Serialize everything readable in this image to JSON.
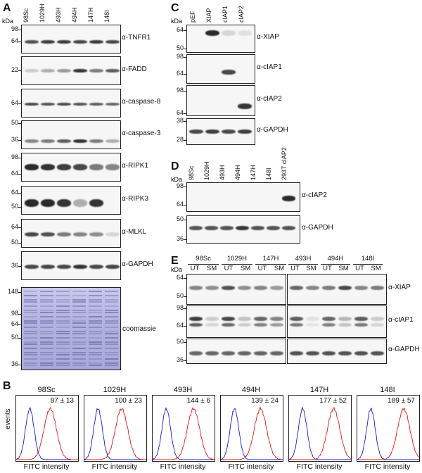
{
  "panels": {
    "a": {
      "letter": "A",
      "kda_unit": "kDa",
      "lanes": [
        "98Sc",
        "1029H",
        "493H",
        "494H",
        "147H",
        "148I"
      ],
      "blots": [
        {
          "label": "α-TNFR1",
          "markers": [
            "98",
            "64"
          ]
        },
        {
          "label": "α-FADD",
          "markers": [
            "22"
          ]
        },
        {
          "label": "α-caspase-8",
          "markers": [
            "64"
          ]
        },
        {
          "label": "α-caspase-3",
          "markers": [
            "50",
            "36"
          ]
        },
        {
          "label": "α-RIPK1",
          "markers": [
            "98",
            "64"
          ]
        },
        {
          "label": "α-RIPK3",
          "markers": [
            "64",
            "50"
          ]
        },
        {
          "label": "α-MLKL",
          "markers": [
            "64",
            "50"
          ]
        },
        {
          "label": "α-GAPDH",
          "markers": [
            "36"
          ]
        }
      ],
      "coomassie": {
        "label": "coomassie",
        "markers": [
          "148",
          "98",
          "64",
          "50",
          "36"
        ]
      }
    },
    "b": {
      "letter": "B",
      "ylabel": "events",
      "xlabel": "FITC intensity",
      "histograms": [
        {
          "sample": "98Sc",
          "value": "87 ± 13"
        },
        {
          "sample": "1029H",
          "value": "100 ± 23"
        },
        {
          "sample": "493H",
          "value": "144 ± 6"
        },
        {
          "sample": "494H",
          "value": "139 ± 24"
        },
        {
          "sample": "147H",
          "value": "177 ± 52"
        },
        {
          "sample": "148I",
          "value": "189 ± 57"
        }
      ],
      "colors": {
        "control": "#1a1ad8",
        "stained": "#e01818"
      }
    },
    "c": {
      "letter": "C",
      "lanes": [
        "pEF",
        "XIAP",
        "cIAP1",
        "cIAP2"
      ],
      "blots": [
        {
          "label": "α-XIAP",
          "markers": [
            "64",
            "50"
          ]
        },
        {
          "label": "α-cIAP1",
          "markers": [
            "98",
            "64"
          ]
        },
        {
          "label": "α-cIAP2",
          "markers": [
            "98",
            "64"
          ]
        },
        {
          "label": "α-GAPDH",
          "markers": [
            "38",
            "28"
          ]
        }
      ]
    },
    "d": {
      "letter": "D",
      "lanes": [
        "98Sc",
        "1029H",
        "493H",
        "494H",
        "147H",
        "148I",
        "293T cIAP2"
      ],
      "blots": [
        {
          "label": "α-cIAP2",
          "markers": [
            "98",
            "64"
          ]
        },
        {
          "label": "α-GAPDH",
          "markers": [
            "50",
            "36"
          ]
        }
      ]
    },
    "e": {
      "letter": "E",
      "groups": [
        "98Sc",
        "1029H",
        "147H",
        "493H",
        "494H",
        "148I"
      ],
      "subs": [
        "UT",
        "SM"
      ],
      "blots": [
        {
          "label": "α-XIAP",
          "markers": [
            "64",
            "50"
          ]
        },
        {
          "label": "α-cIAP1",
          "markers": [
            "98",
            "64"
          ]
        },
        {
          "label": "α-GAPDH",
          "markers": [
            "50",
            "36"
          ]
        }
      ]
    }
  }
}
